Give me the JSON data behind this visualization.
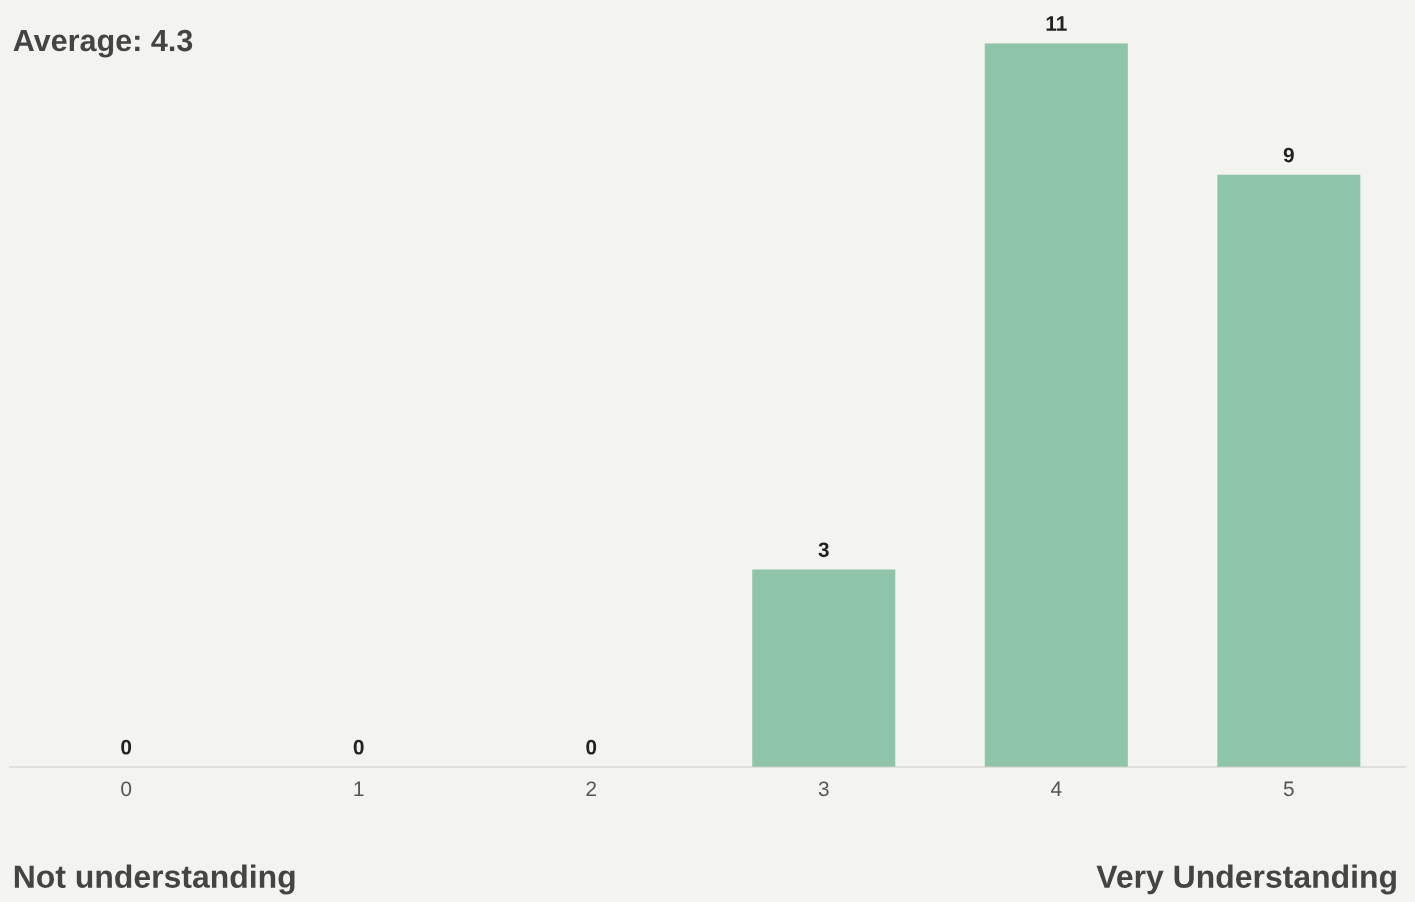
{
  "chart_data": {
    "type": "bar",
    "title": "Average: 4.3",
    "categories": [
      "0",
      "1",
      "2",
      "3",
      "4",
      "5"
    ],
    "values": [
      0,
      0,
      0,
      3,
      11,
      9
    ],
    "color": "#8ec4a8",
    "data_labels": true,
    "grid": false,
    "legend": false,
    "tick_labels": "x",
    "annotations": [
      "Not understanding",
      "Very Understanding"
    ]
  }
}
